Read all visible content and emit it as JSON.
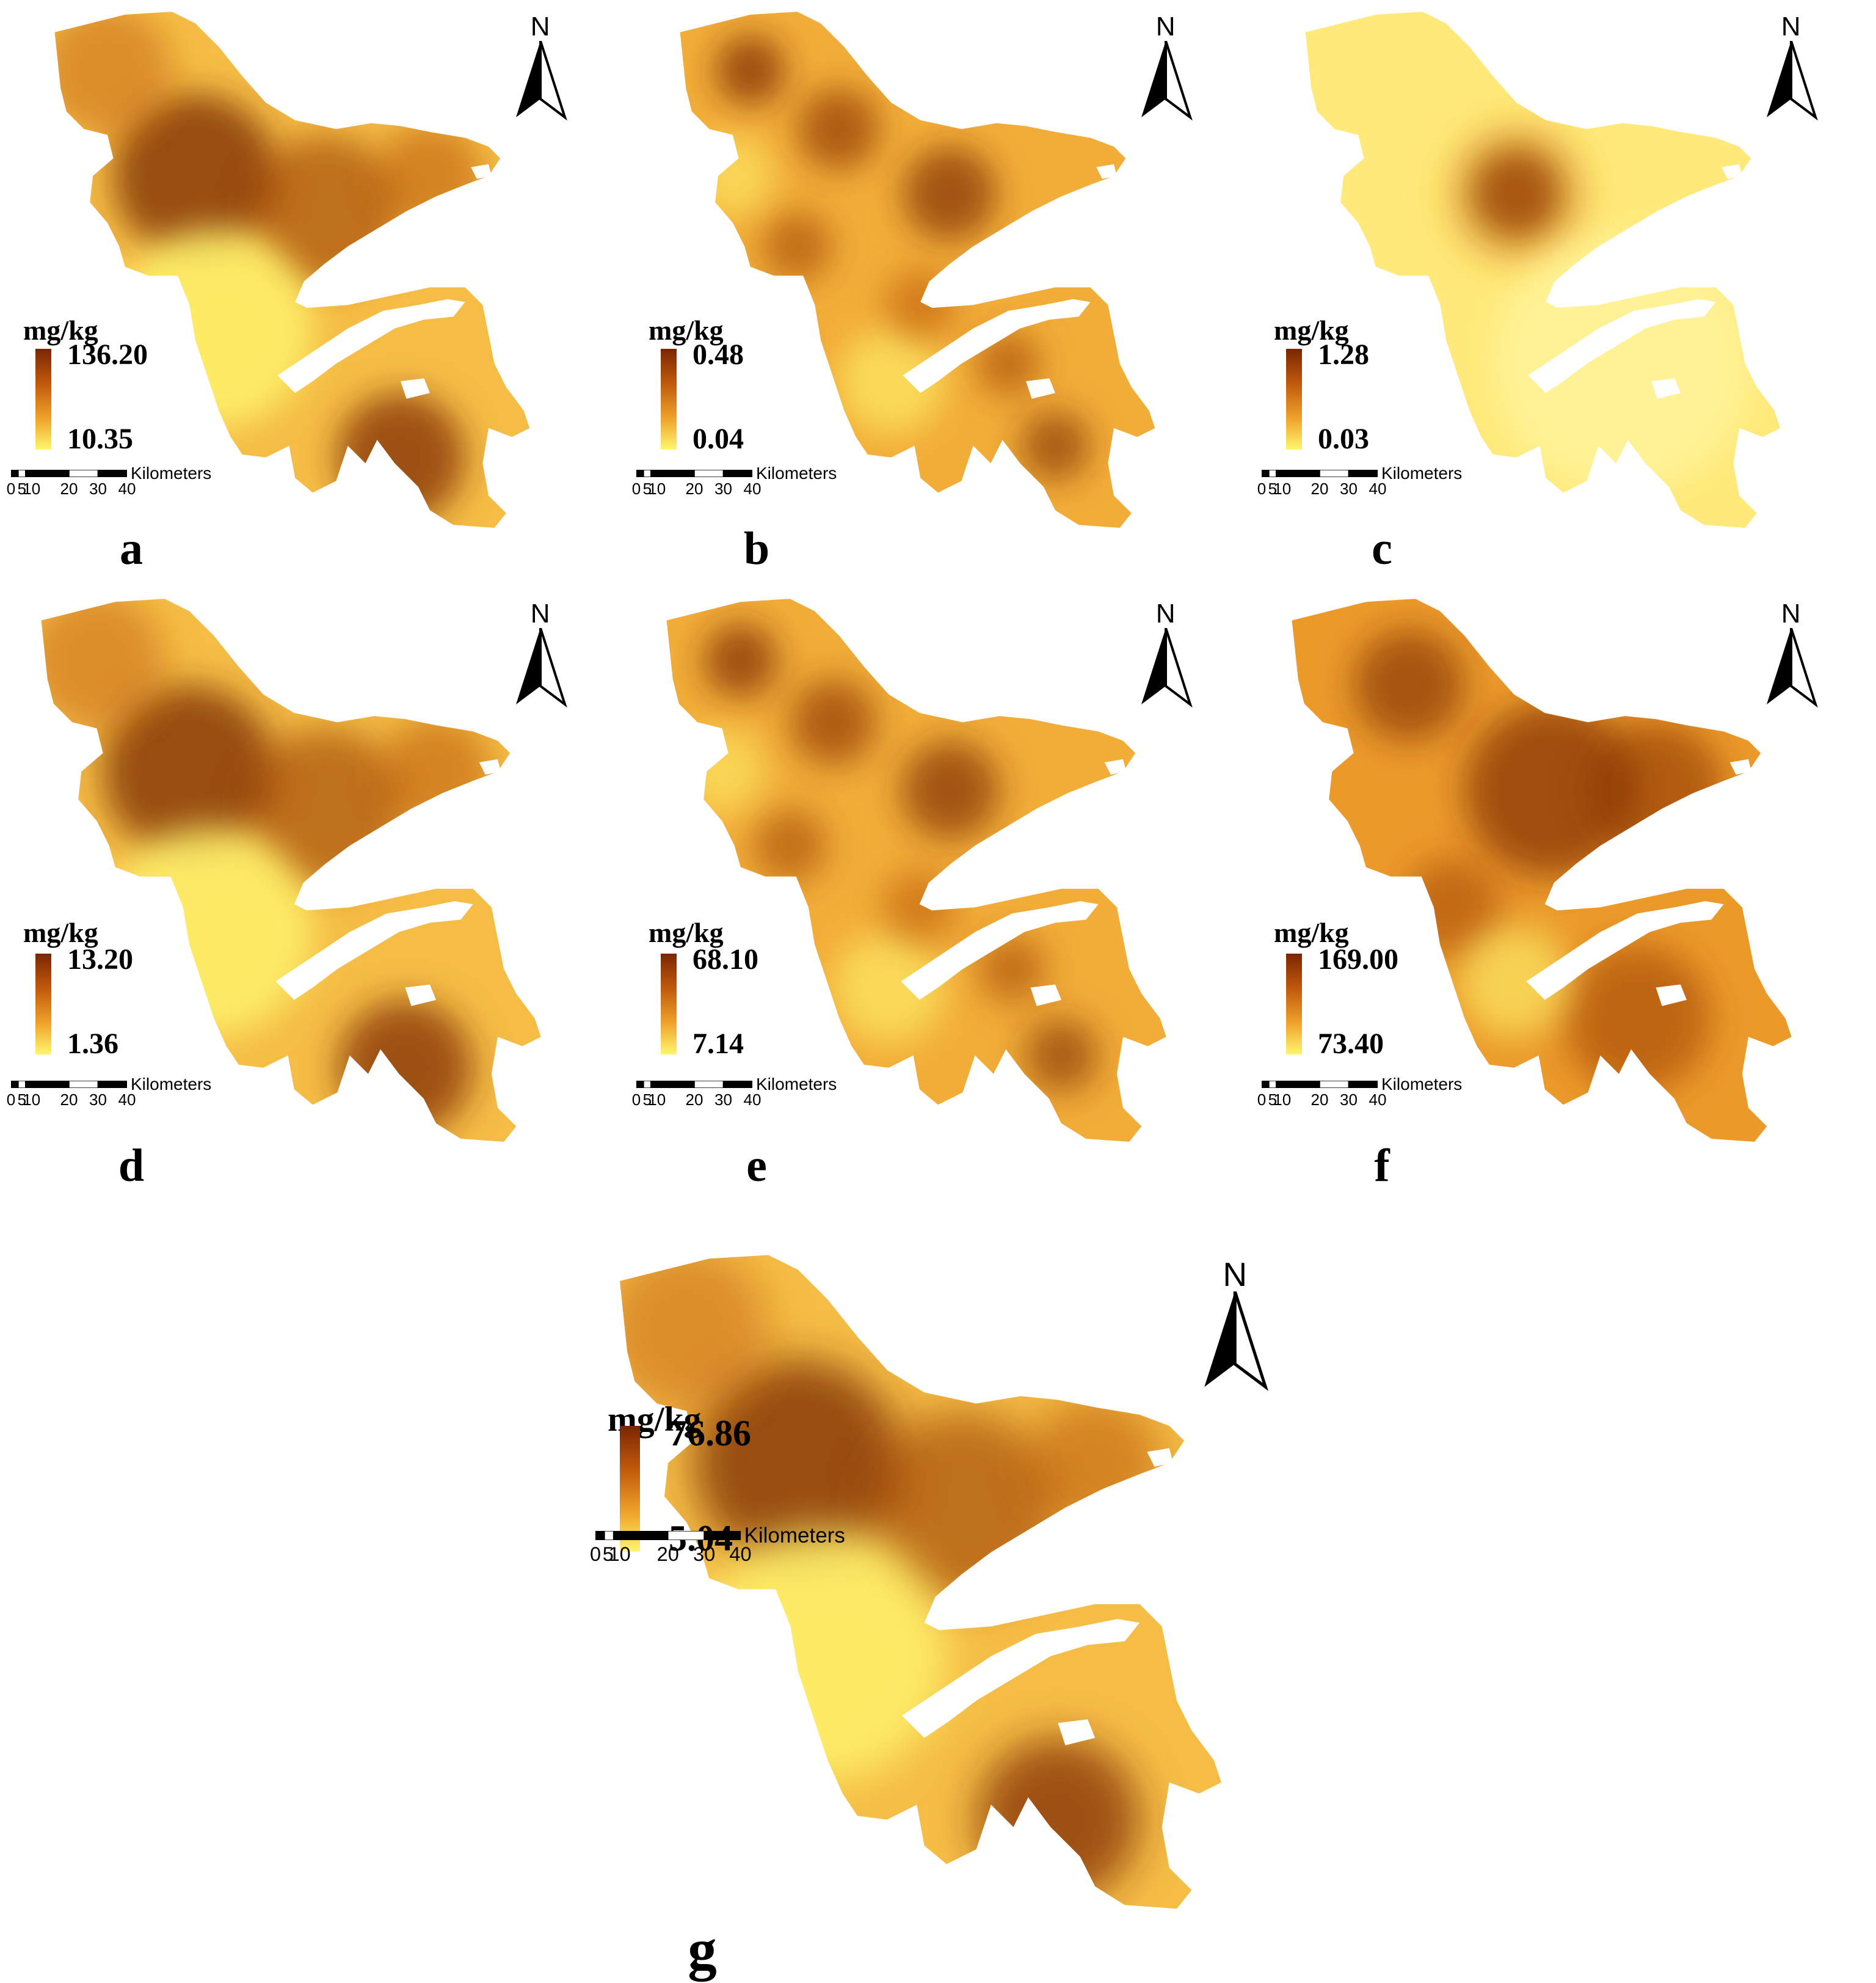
{
  "north_label": "N",
  "unit_label": "mg/kg",
  "scale_bar": {
    "title": "Kilometers",
    "ticks": [
      "0",
      "5",
      "10",
      "20",
      "30",
      "40"
    ]
  },
  "colors": {
    "ramp_high": "#7a2503",
    "ramp_mid": "#e8921f",
    "ramp_low": "#fff66e"
  },
  "panels": [
    {
      "letter": "a",
      "max": "136.20",
      "min": "10.35"
    },
    {
      "letter": "b",
      "max": "0.48",
      "min": "0.04"
    },
    {
      "letter": "c",
      "max": "1.28",
      "min": "0.03"
    },
    {
      "letter": "d",
      "max": "13.20",
      "min": "1.36"
    },
    {
      "letter": "e",
      "max": "68.10",
      "min": "7.14"
    },
    {
      "letter": "f",
      "max": "169.00",
      "min": "73.40"
    },
    {
      "letter": "g",
      "max": "76.86",
      "min": "5.04"
    }
  ]
}
